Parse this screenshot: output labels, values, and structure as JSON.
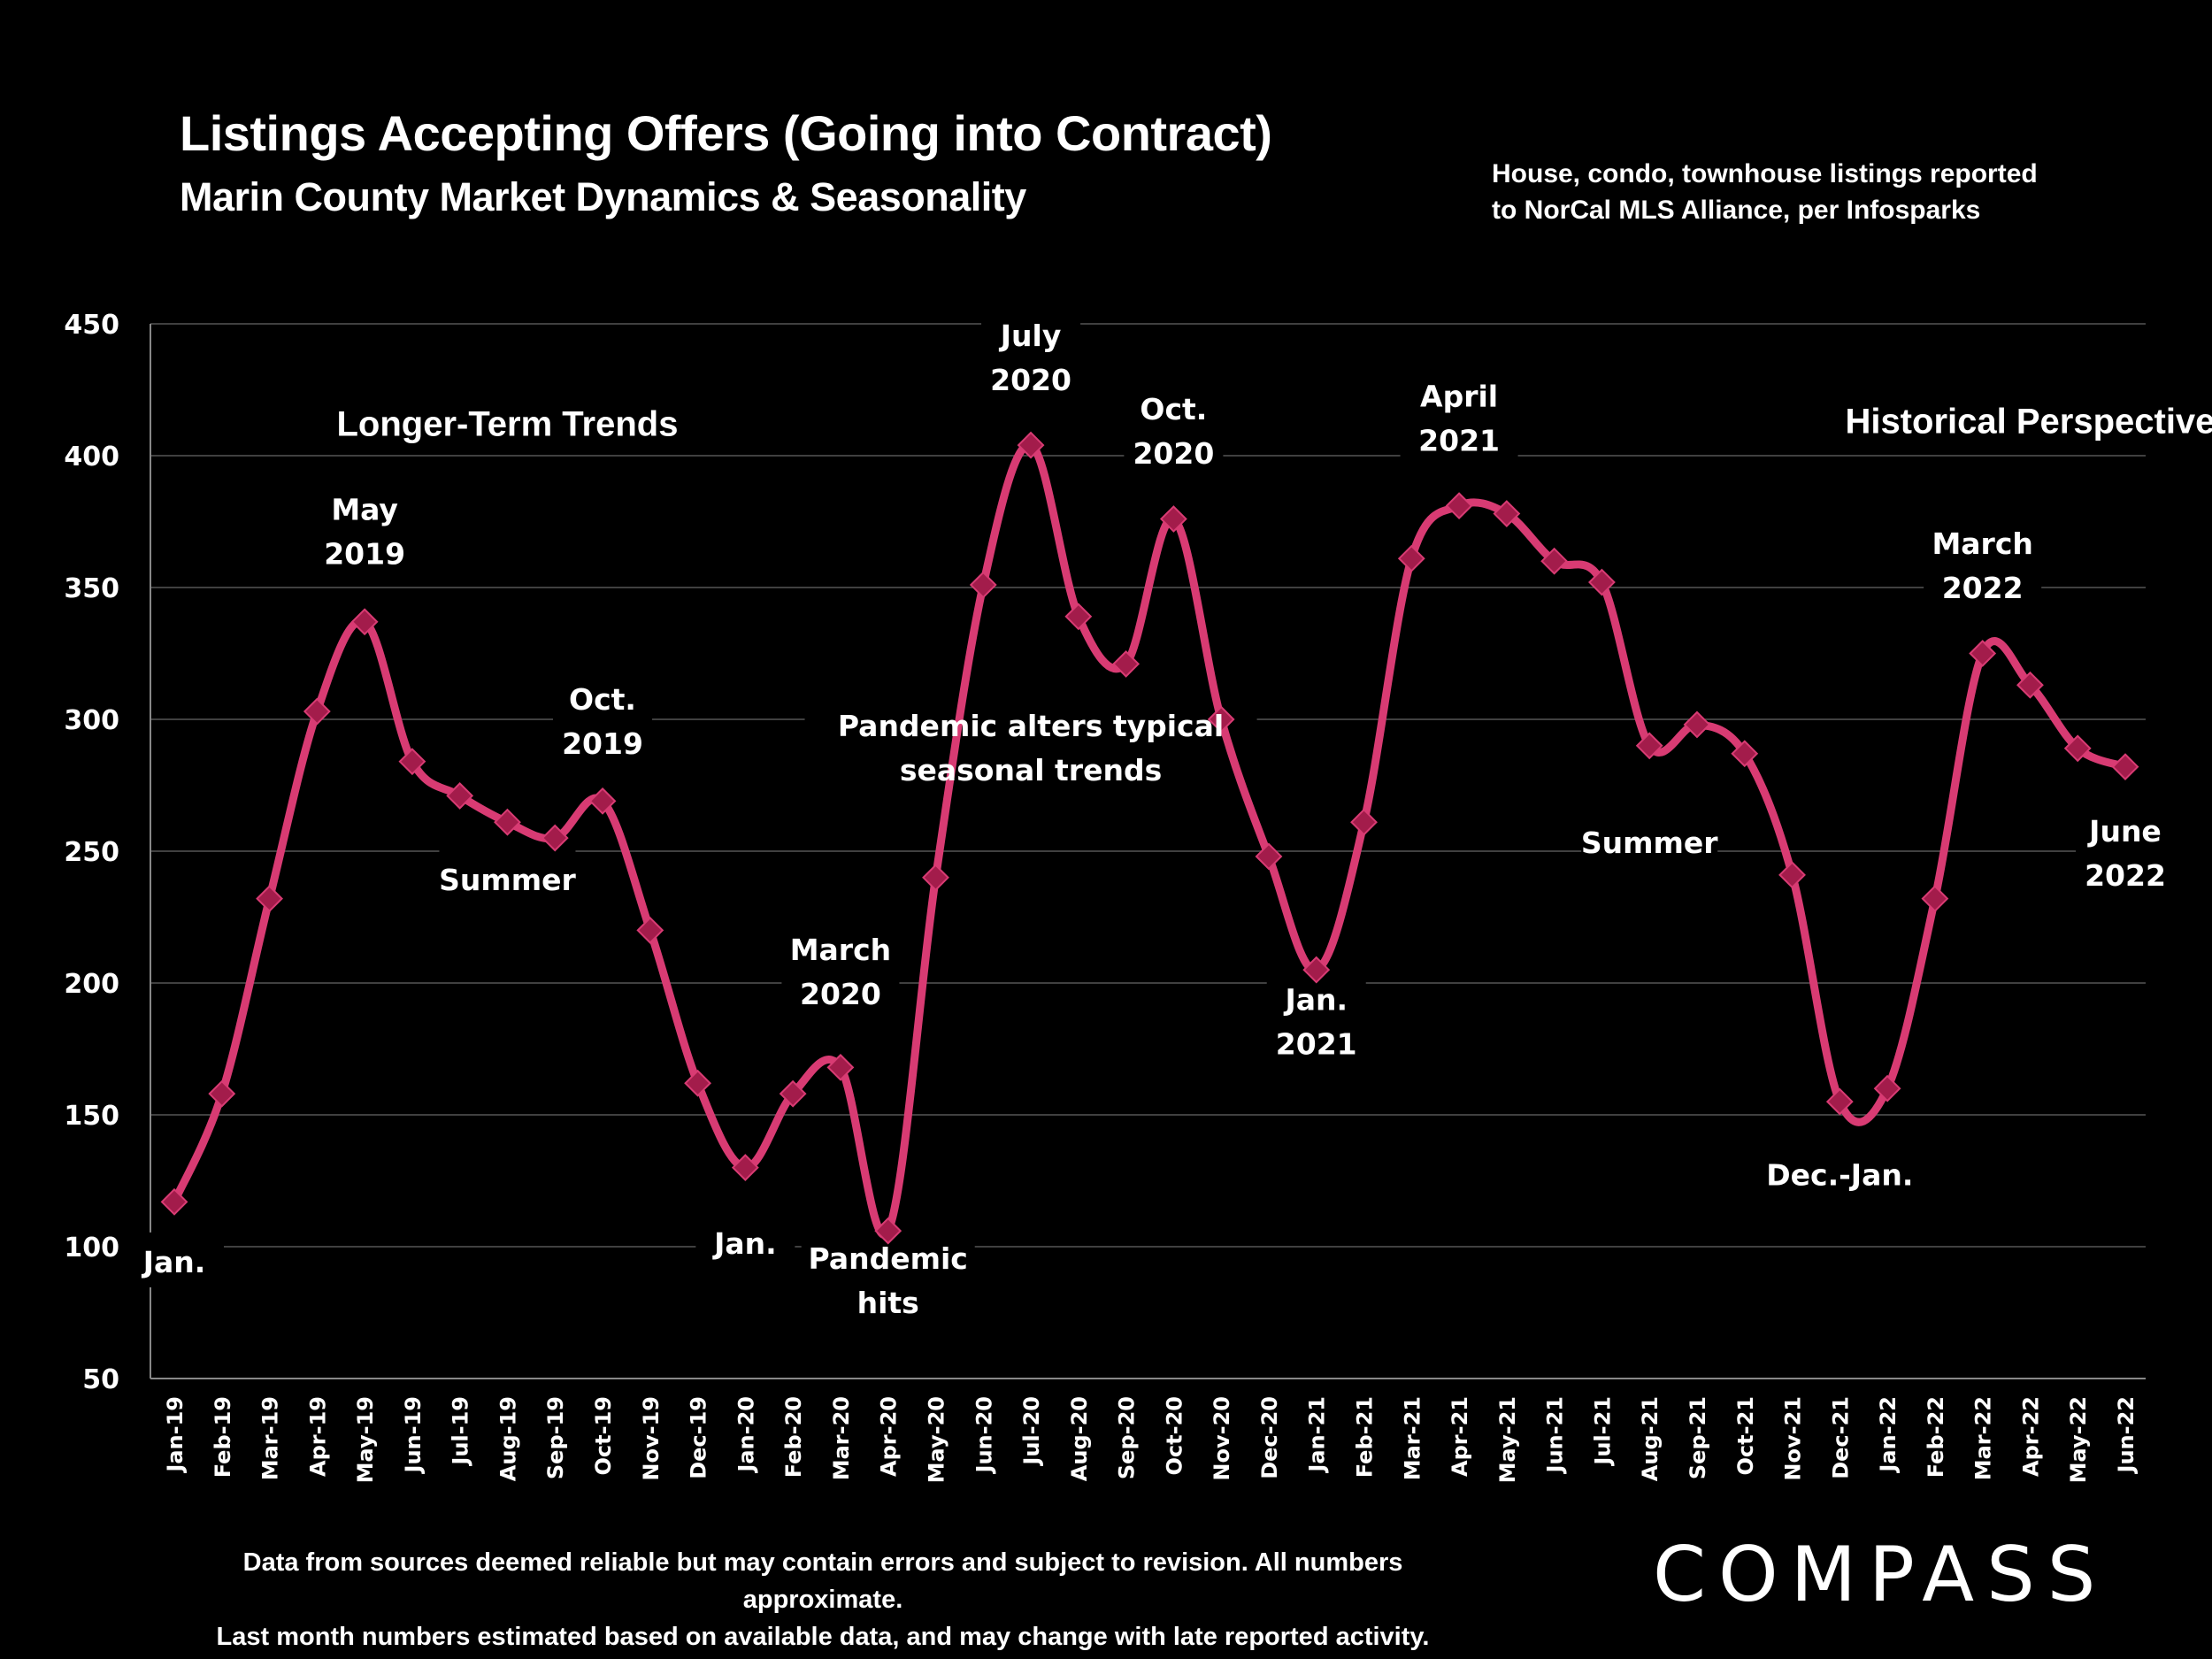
{
  "header": {
    "title": "Listings Accepting Offers (Going into Contract)",
    "subtitle": "Marin County Market Dynamics & Seasonality",
    "source_note_lines": [
      "House, condo, townhouse listings reported",
      "to NorCal MLS Alliance, per Infosparks"
    ]
  },
  "footer": {
    "disclaimer_lines": [
      "Data from sources deemed reliable but may contain errors and subject to revision. All numbers approximate.",
      "Last month numbers estimated based on available data, and may change with late reported activity."
    ],
    "logo_text": "COMPASS"
  },
  "colors": {
    "background": "#000000",
    "line": "#D83B73",
    "marker_fill": "#A31C4B",
    "marker_stroke": "#D83B73",
    "grid": "#555555",
    "text": "#FFFFFF"
  },
  "chart_data": {
    "type": "line",
    "title": "Listings Accepting Offers (Going into Contract)",
    "subtitle": "Marin County Market Dynamics & Seasonality",
    "xlabel": "",
    "ylabel": "",
    "ylim": [
      50,
      450
    ],
    "yticks": [
      50,
      100,
      150,
      200,
      250,
      300,
      350,
      400,
      450
    ],
    "grid": true,
    "legend": "none",
    "smooth": true,
    "marker": "diamond",
    "categories": [
      "Jan-19",
      "Feb-19",
      "Mar-19",
      "Apr-19",
      "May-19",
      "Jun-19",
      "Jul-19",
      "Aug-19",
      "Sep-19",
      "Oct-19",
      "Nov-19",
      "Dec-19",
      "Jan-20",
      "Feb-20",
      "Mar-20",
      "Apr-20",
      "May-20",
      "Jun-20",
      "Jul-20",
      "Aug-20",
      "Sep-20",
      "Oct-20",
      "Nov-20",
      "Dec-20",
      "Jan-21",
      "Feb-21",
      "Mar-21",
      "Apr-21",
      "May-21",
      "Jun-21",
      "Jul-21",
      "Aug-21",
      "Sep-21",
      "Oct-21",
      "Nov-21",
      "Dec-21",
      "Jan-22",
      "Feb-22",
      "Mar-22",
      "Apr-22",
      "May-22",
      "Jun-22"
    ],
    "series": [
      {
        "name": "Listings Accepting Offers",
        "values": [
          117,
          158,
          232,
          303,
          337,
          284,
          271,
          261,
          255,
          269,
          220,
          162,
          130,
          158,
          168,
          106,
          240,
          351,
          404,
          339,
          321,
          376,
          300,
          248,
          205,
          261,
          361,
          381,
          378,
          360,
          352,
          290,
          298,
          287,
          241,
          155,
          160,
          232,
          325,
          313,
          289,
          282
        ]
      }
    ],
    "annotations": [
      {
        "lines": [
          "Longer-Term Trends"
        ],
        "style": "large",
        "at": "Aug-19",
        "y": 412
      },
      {
        "lines": [
          "Historical Perspective"
        ],
        "style": "large",
        "at": "Apr-22",
        "y": 413
      },
      {
        "lines": [
          "May",
          "2019"
        ],
        "at": "May-19",
        "y": 372
      },
      {
        "lines": [
          "Oct.",
          "2019"
        ],
        "at": "Oct-19",
        "y": 300
      },
      {
        "lines": [
          "Summer"
        ],
        "at": "Aug-19",
        "y": 240
      },
      {
        "lines": [
          "Jan."
        ],
        "at": "Jan-19",
        "y": 95
      },
      {
        "lines": [
          "Jan."
        ],
        "at": "Jan-20",
        "y": 102
      },
      {
        "lines": [
          "March",
          "2020"
        ],
        "at": "Mar-20",
        "y": 205
      },
      {
        "lines": [
          "Pandemic",
          "hits"
        ],
        "at": "Apr-20",
        "y": 88
      },
      {
        "lines": [
          "July",
          "2020"
        ],
        "at": "Jul-20",
        "y": 438
      },
      {
        "lines": [
          "Oct.",
          "2020"
        ],
        "at": "Oct-20",
        "y": 410
      },
      {
        "lines": [
          "Pandemic alters typical",
          "seasonal trends"
        ],
        "at": "Jul-20",
        "y": 290
      },
      {
        "lines": [
          "Jan.",
          "2021"
        ],
        "at": "Jan-21",
        "y": 186
      },
      {
        "lines": [
          "April",
          "2021"
        ],
        "at": "Apr-21",
        "y": 415
      },
      {
        "lines": [
          "Summer"
        ],
        "at": "Aug-21",
        "y": 254
      },
      {
        "lines": [
          "Dec.-Jan."
        ],
        "at": "Dec-21",
        "y": 128
      },
      {
        "lines": [
          "March",
          "2022"
        ],
        "at": "Mar-22",
        "y": 359
      },
      {
        "lines": [
          "June",
          "2022"
        ],
        "at": "Jun-22",
        "y": 250
      }
    ]
  }
}
